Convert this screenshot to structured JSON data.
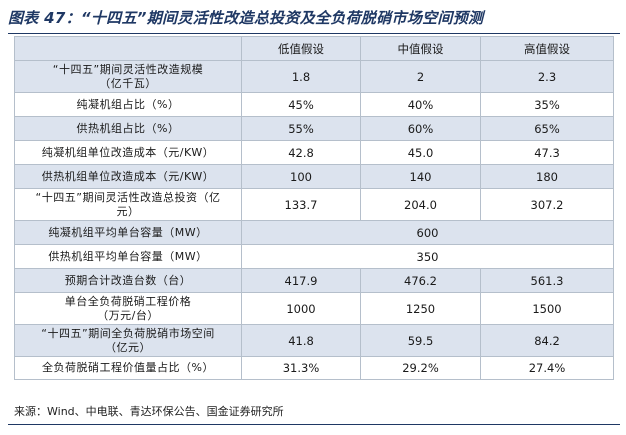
{
  "title": "图表 47：“十四五”期间灵活性改造总投资及全负荷脱硝市场空间预测",
  "table": {
    "headers": [
      "",
      "低值假设",
      "中值假设",
      "高值假设"
    ],
    "rows": [
      {
        "label": "“十四五”期间灵活性改造规模（亿千瓦）",
        "label_lines": [
          "“十四五”期间灵活性改造规模",
          "（亿千瓦）"
        ],
        "values": [
          "1.8",
          "2",
          "2.3"
        ]
      },
      {
        "label": "纯凝机组占比（%）",
        "label_lines": [
          "纯凝机组占比（%）"
        ],
        "values": [
          "45%",
          "40%",
          "35%"
        ]
      },
      {
        "label": "供热机组占比（%）",
        "label_lines": [
          "供热机组占比（%）"
        ],
        "values": [
          "55%",
          "60%",
          "65%"
        ]
      },
      {
        "label": "纯凝机组单位改造成本（元/KW）",
        "label_lines": [
          "纯凝机组单位改造成本（元/KW）"
        ],
        "values": [
          "42.8",
          "45.0",
          "47.3"
        ]
      },
      {
        "label": "供热机组单位改造成本（元/KW）",
        "label_lines": [
          "供热机组单位改造成本（元/KW）"
        ],
        "values": [
          "100",
          "140",
          "180"
        ]
      },
      {
        "label": "“十四五”期间灵活性改造总投资（亿元）",
        "label_lines": [
          "“十四五”期间灵活性改造总投资（亿",
          "元）"
        ],
        "values": [
          "133.7",
          "204.0",
          "307.2"
        ]
      },
      {
        "label": "纯凝机组平均单台容量（MW）",
        "label_lines": [
          "纯凝机组平均单台容量（MW）"
        ],
        "values": [
          "600"
        ]
      },
      {
        "label": "供热机组平均单台容量（MW）",
        "label_lines": [
          "供热机组平均单台容量（MW）"
        ],
        "values": [
          "350"
        ]
      },
      {
        "label": "预期合计改造台数（台）",
        "label_lines": [
          "预期合计改造台数（台）"
        ],
        "values": [
          "417.9",
          "476.2",
          "561.3"
        ]
      },
      {
        "label": "单台全负荷脱硝工程价格（万元/台）",
        "label_lines": [
          "单台全负荷脱硝工程价格",
          "（万元/台）"
        ],
        "values": [
          "1000",
          "1250",
          "1500"
        ]
      },
      {
        "label": "“十四五”期间全负荷脱硝市场空间（亿元）",
        "label_lines": [
          "“十四五”期间全负荷脱硝市场空间",
          "（亿元）"
        ],
        "values": [
          "41.8",
          "59.5",
          "84.2"
        ]
      },
      {
        "label": "全负荷脱硝工程价值量占比（%）",
        "label_lines": [
          "全负荷脱硝工程价值量占比（%）"
        ],
        "values": [
          "31.3%",
          "29.2%",
          "27.4%"
        ]
      }
    ]
  },
  "source": "来源：Wind、中电联、青达环保公告、国金证券研究所",
  "colors": {
    "title": "#1f3864",
    "shade": "#dce3ee",
    "border": "#b5bfcb"
  }
}
